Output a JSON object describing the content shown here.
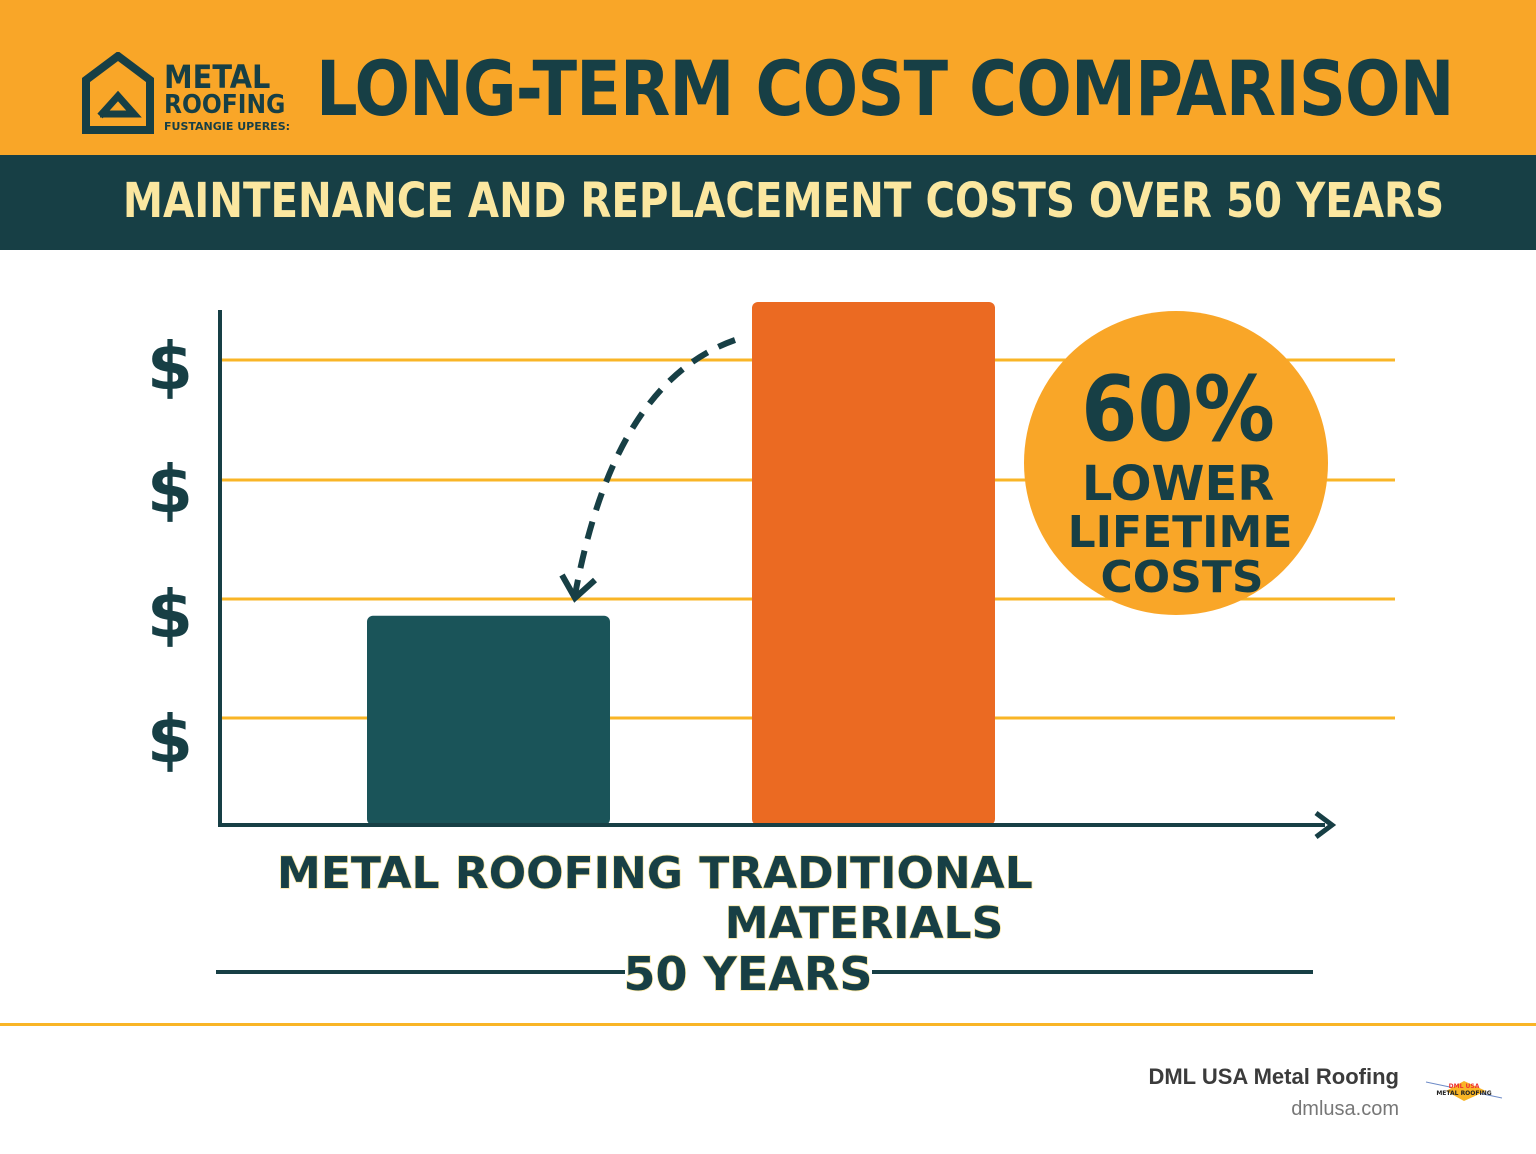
{
  "header": {
    "title": "LONG-TERM COST COMPARISON",
    "subtitle": "MAINTENANCE AND REPLACEMENT COSTS OVER 50 YEARS",
    "logo": {
      "line1": "METAL",
      "line2": "ROOFING",
      "tagline": "FUSTANGIE UPERES:",
      "icon": "house-logo-icon"
    }
  },
  "chart_data": {
    "type": "bar",
    "title": "LONG-TERM COST COMPARISON",
    "subtitle": "MAINTENANCE AND REPLACEMENT COSTS OVER 50 YEARS",
    "categories": [
      "METAL ROOFING",
      "TRADITIONAL MATERIALS"
    ],
    "values": [
      40,
      100
    ],
    "ytick_labels": [
      "$",
      "$",
      "$",
      "$"
    ],
    "xlabel": "50 YEARS",
    "grid": true,
    "colors": {
      "metal": "#1a5459",
      "traditional": "#eb6a22",
      "grid": "#f9b526",
      "axis": "#173f45"
    },
    "annotation": {
      "big": "60%",
      "lines": [
        "LOWER",
        "LIFETIME",
        "COSTS"
      ],
      "placement": "top-right",
      "color": "#f9a628"
    }
  },
  "footer": {
    "brand": "DML USA Metal Roofing",
    "url": "dmlusa.com",
    "logo_text": [
      "DML USA",
      "METAL ROOFING"
    ]
  }
}
